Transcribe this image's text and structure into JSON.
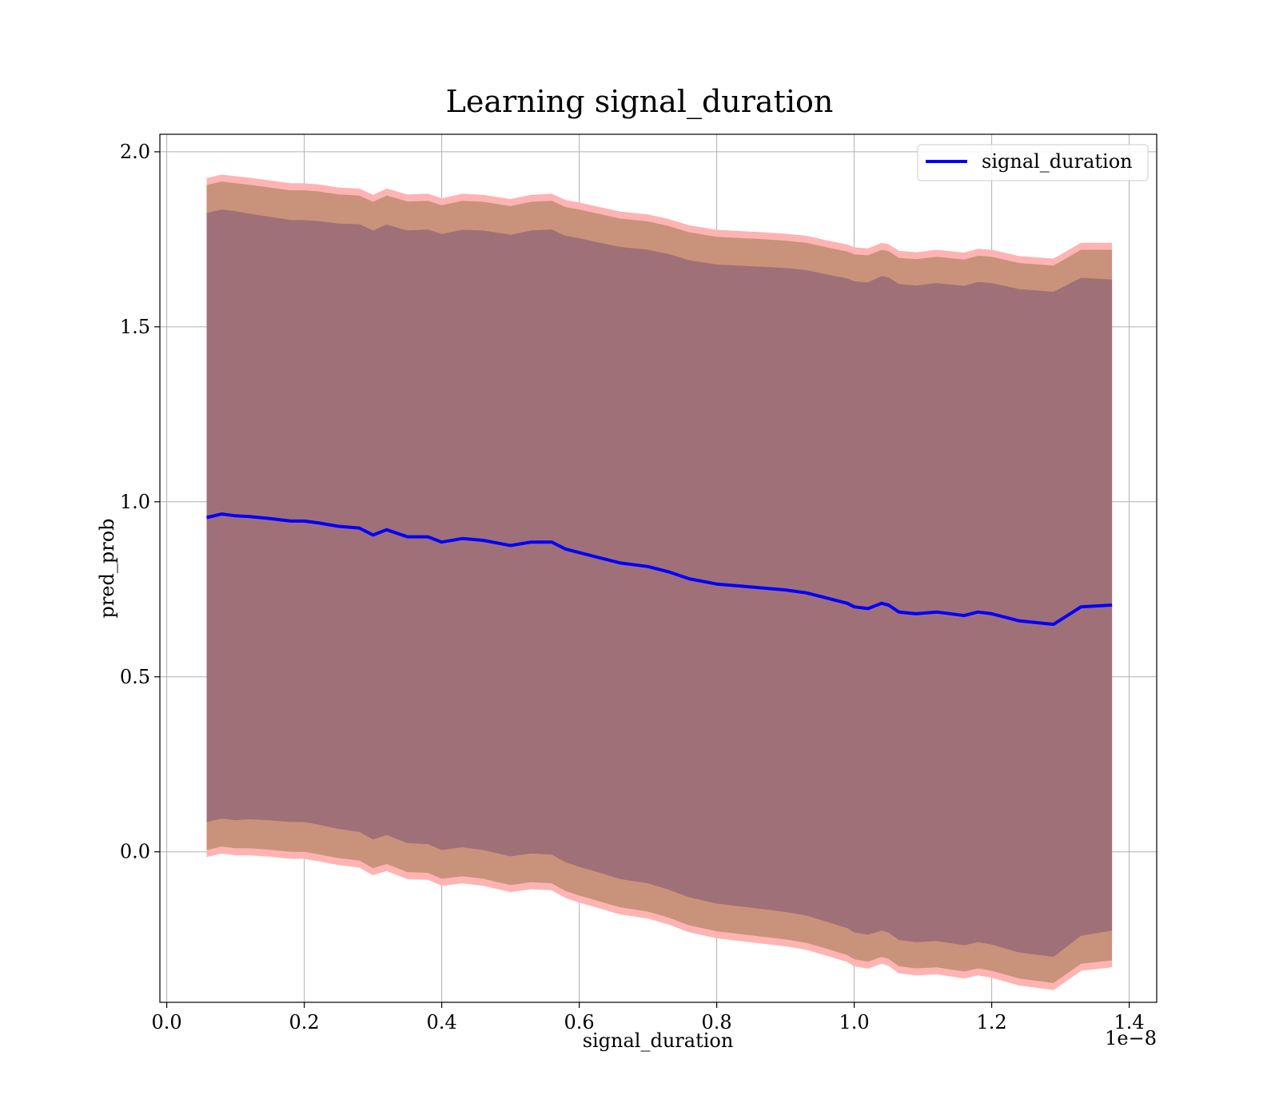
{
  "chart_data": {
    "type": "line",
    "title": "Learning signal_duration",
    "xlabel": "signal_duration",
    "ylabel": "pred_prob",
    "x_offset_label": "1e−8",
    "xlim": [
      -0.01,
      1.44
    ],
    "ylim": [
      -0.43,
      2.05
    ],
    "x_ticks": [
      0.0,
      0.2,
      0.4,
      0.6,
      0.8,
      1.0,
      1.2,
      1.4
    ],
    "x_tick_labels": [
      "0.0",
      "0.2",
      "0.4",
      "0.6",
      "0.8",
      "1.0",
      "1.2",
      "1.4"
    ],
    "y_ticks": [
      0.0,
      0.5,
      1.0,
      1.5,
      2.0
    ],
    "y_tick_labels": [
      "0.0",
      "0.5",
      "1.0",
      "1.5",
      "2.0"
    ],
    "grid": true,
    "legend_position": "top-right",
    "series": [
      {
        "name": "signal_duration",
        "color": "#0000ff",
        "x": [
          0.058,
          0.08,
          0.1,
          0.12,
          0.15,
          0.18,
          0.2,
          0.22,
          0.25,
          0.28,
          0.3,
          0.32,
          0.35,
          0.38,
          0.4,
          0.43,
          0.46,
          0.5,
          0.53,
          0.56,
          0.58,
          0.6,
          0.63,
          0.66,
          0.7,
          0.73,
          0.76,
          0.8,
          0.83,
          0.86,
          0.9,
          0.93,
          0.96,
          0.99,
          1.0,
          1.02,
          1.04,
          1.05,
          1.065,
          1.09,
          1.12,
          1.16,
          1.18,
          1.2,
          1.24,
          1.29,
          1.33,
          1.375
        ],
        "values": [
          0.955,
          0.965,
          0.96,
          0.958,
          0.952,
          0.945,
          0.945,
          0.94,
          0.93,
          0.925,
          0.905,
          0.92,
          0.9,
          0.9,
          0.885,
          0.895,
          0.89,
          0.875,
          0.885,
          0.885,
          0.865,
          0.855,
          0.84,
          0.825,
          0.815,
          0.8,
          0.78,
          0.765,
          0.76,
          0.755,
          0.748,
          0.74,
          0.725,
          0.71,
          0.7,
          0.695,
          0.71,
          0.705,
          0.685,
          0.68,
          0.685,
          0.675,
          0.685,
          0.68,
          0.66,
          0.65,
          0.7,
          0.705
        ],
        "band_inner_half_width": [
          0.87,
          0.87,
          0.87,
          0.865,
          0.862,
          0.86,
          0.86,
          0.862,
          0.865,
          0.868,
          0.87,
          0.872,
          0.875,
          0.878,
          0.88,
          0.882,
          0.885,
          0.888,
          0.89,
          0.893,
          0.895,
          0.898,
          0.9,
          0.903,
          0.905,
          0.908,
          0.91,
          0.913,
          0.915,
          0.917,
          0.92,
          0.922,
          0.925,
          0.928,
          0.93,
          0.932,
          0.935,
          0.936,
          0.937,
          0.938,
          0.94,
          0.942,
          0.943,
          0.945,
          0.948,
          0.95,
          0.94,
          0.93
        ],
        "band_mid_half_width": [
          0.95,
          0.95,
          0.95,
          0.948,
          0.946,
          0.945,
          0.945,
          0.947,
          0.948,
          0.95,
          0.952,
          0.955,
          0.958,
          0.96,
          0.962,
          0.965,
          0.967,
          0.97,
          0.972,
          0.975,
          0.977,
          0.98,
          0.982,
          0.984,
          0.986,
          0.988,
          0.99,
          0.992,
          0.994,
          0.996,
          0.998,
          1.0,
          1.002,
          1.005,
          1.007,
          1.009,
          1.01,
          1.011,
          1.012,
          1.013,
          1.015,
          1.017,
          1.018,
          1.02,
          1.022,
          1.025,
          1.02,
          1.015
        ],
        "band_outer_half_width": [
          0.97,
          0.97,
          0.97,
          0.968,
          0.966,
          0.965,
          0.965,
          0.967,
          0.968,
          0.97,
          0.972,
          0.975,
          0.978,
          0.98,
          0.982,
          0.985,
          0.987,
          0.99,
          0.992,
          0.995,
          0.997,
          1.0,
          1.002,
          1.004,
          1.006,
          1.008,
          1.01,
          1.012,
          1.014,
          1.016,
          1.018,
          1.02,
          1.022,
          1.025,
          1.027,
          1.029,
          1.03,
          1.031,
          1.032,
          1.033,
          1.035,
          1.037,
          1.038,
          1.04,
          1.042,
          1.045,
          1.04,
          1.035
        ]
      }
    ],
    "band_colors": {
      "outer": "#ffb3b3",
      "mid": "#c8937a",
      "inner": "#a07078",
      "line": "#0000ff"
    }
  }
}
